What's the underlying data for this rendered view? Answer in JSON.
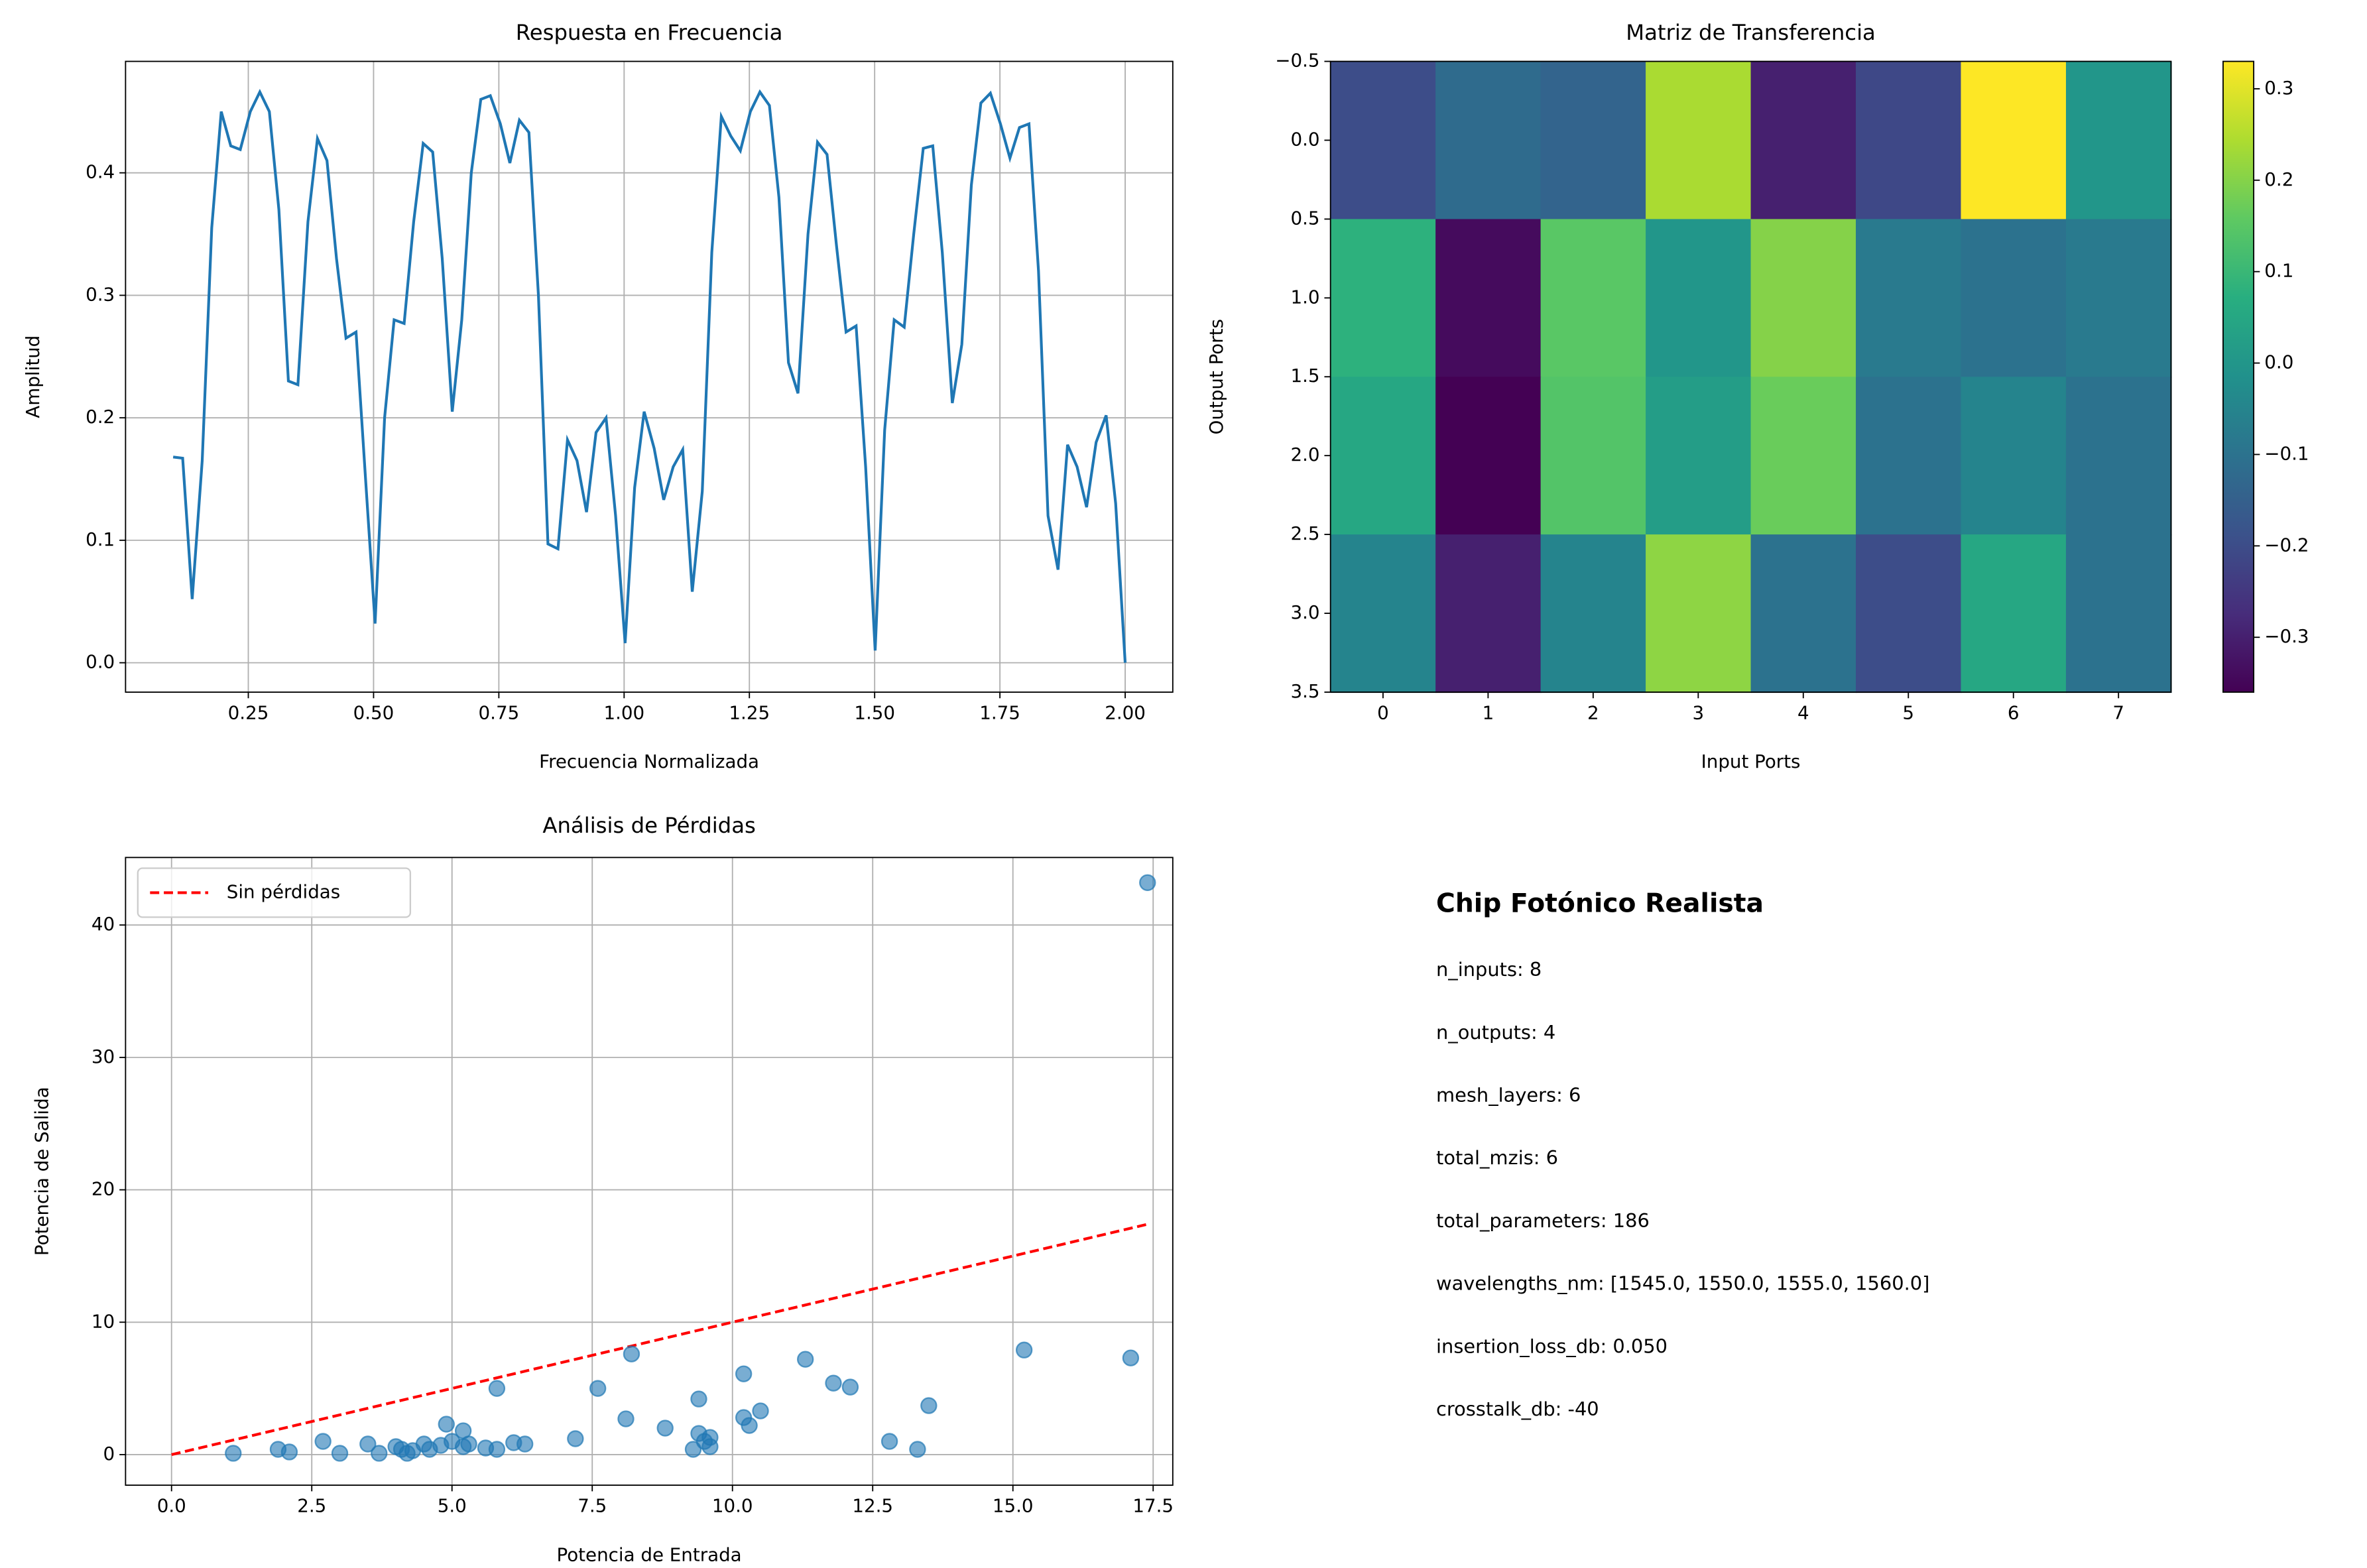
{
  "chart_data": [
    {
      "type": "line",
      "title": "Respuesta en Frecuencia",
      "xlabel": "Frecuencia Normalizada",
      "ylabel": "Amplitud",
      "color": "#1f77b4",
      "grid": true,
      "x": [
        0.1,
        0.119,
        0.138,
        0.158,
        0.177,
        0.196,
        0.215,
        0.234,
        0.254,
        0.273,
        0.292,
        0.311,
        0.33,
        0.349,
        0.369,
        0.388,
        0.407,
        0.426,
        0.445,
        0.465,
        0.484,
        0.503,
        0.522,
        0.541,
        0.561,
        0.58,
        0.599,
        0.618,
        0.637,
        0.657,
        0.676,
        0.695,
        0.714,
        0.733,
        0.753,
        0.772,
        0.791,
        0.81,
        0.829,
        0.848,
        0.868,
        0.887,
        0.906,
        0.925,
        0.944,
        0.964,
        0.983,
        1.002,
        1.021,
        1.04,
        1.06,
        1.079,
        1.098,
        1.117,
        1.136,
        1.156,
        1.175,
        1.194,
        1.213,
        1.232,
        1.252,
        1.271,
        1.29,
        1.309,
        1.328,
        1.347,
        1.367,
        1.386,
        1.405,
        1.424,
        1.443,
        1.463,
        1.482,
        1.501,
        1.52,
        1.539,
        1.559,
        1.578,
        1.597,
        1.616,
        1.635,
        1.655,
        1.674,
        1.693,
        1.712,
        1.731,
        1.751,
        1.77,
        1.789,
        1.808,
        1.827,
        1.846,
        1.866,
        1.885,
        1.904,
        1.923,
        1.942,
        1.962,
        1.981,
        2.0
      ],
      "values": [
        0.168,
        0.167,
        0.052,
        0.165,
        0.355,
        0.45,
        0.422,
        0.419,
        0.45,
        0.466,
        0.45,
        0.37,
        0.23,
        0.227,
        0.36,
        0.428,
        0.41,
        0.33,
        0.265,
        0.27,
        0.15,
        0.032,
        0.2,
        0.28,
        0.277,
        0.36,
        0.424,
        0.417,
        0.33,
        0.205,
        0.28,
        0.4,
        0.46,
        0.463,
        0.44,
        0.408,
        0.443,
        0.433,
        0.3,
        0.097,
        0.093,
        0.182,
        0.165,
        0.123,
        0.188,
        0.2,
        0.12,
        0.016,
        0.143,
        0.205,
        0.175,
        0.133,
        0.16,
        0.174,
        0.058,
        0.14,
        0.335,
        0.446,
        0.43,
        0.418,
        0.45,
        0.466,
        0.455,
        0.38,
        0.245,
        0.22,
        0.35,
        0.425,
        0.415,
        0.34,
        0.27,
        0.275,
        0.16,
        0.01,
        0.19,
        0.28,
        0.274,
        0.35,
        0.42,
        0.422,
        0.335,
        0.212,
        0.26,
        0.39,
        0.457,
        0.465,
        0.44,
        0.412,
        0.437,
        0.44,
        0.32,
        0.12,
        0.076,
        0.178,
        0.16,
        0.127,
        0.18,
        0.202,
        0.13,
        0.0
      ],
      "xlim": [
        0.005,
        2.095
      ],
      "ylim": [
        -0.024,
        0.491
      ],
      "xticks": [
        0.25,
        {
          "value": 0.5,
          "label": "0.50"
        },
        0.75,
        {
          "value": 1,
          "label": "1.00"
        },
        1.25,
        {
          "value": 1.5,
          "label": "1.50"
        },
        1.75,
        {
          "value": 2,
          "label": "2.00"
        }
      ],
      "yticks": [
        {
          "value": 0,
          "label": "0.0"
        },
        0.1,
        0.2,
        0.3,
        0.4
      ]
    },
    {
      "type": "heatmap",
      "title": "Matriz de Transferencia",
      "xlabel": "Input Ports",
      "ylabel": "Output Ports",
      "colormap": "viridis",
      "values": [
        [
          -0.2,
          -0.12,
          -0.14,
          0.24,
          -0.3,
          -0.21,
          0.33,
          0.0
        ],
        [
          0.08,
          -0.34,
          0.15,
          0.0,
          0.2,
          -0.08,
          -0.1,
          -0.08
        ],
        [
          0.05,
          -0.36,
          0.14,
          0.02,
          0.17,
          -0.1,
          -0.05,
          -0.1
        ],
        [
          -0.05,
          -0.3,
          -0.05,
          0.21,
          -0.1,
          -0.2,
          0.05,
          -0.1
        ]
      ],
      "clim": [
        -0.36,
        0.33
      ],
      "cticks": [
        {
          "value": -0.3,
          "label": "−0.3"
        },
        {
          "value": -0.2,
          "label": "−0.2"
        },
        {
          "value": -0.1,
          "label": "−0.1"
        },
        {
          "value": 0,
          "label": "0.0"
        },
        0.1,
        0.2,
        0.3
      ],
      "xlim": [
        -0.5,
        7.5
      ],
      "ylim": [
        3.5,
        -0.5
      ],
      "xticks": [
        0,
        1,
        2,
        3,
        4,
        5,
        6,
        7
      ],
      "yticks": [
        {
          "value": -0.5,
          "label": "−0.5"
        },
        {
          "value": 0,
          "label": "0.0"
        },
        0.5,
        {
          "value": 1,
          "label": "1.0"
        },
        1.5,
        {
          "value": 2,
          "label": "2.0"
        },
        2.5,
        {
          "value": 3,
          "label": "3.0"
        },
        3.5
      ]
    },
    {
      "type": "scatter",
      "title": "Análisis de Pérdidas",
      "xlabel": "Potencia de Entrada",
      "ylabel": "Potencia de Salida",
      "color": "#1f77b4",
      "grid": true,
      "legend": "upper left",
      "x": [
        1.1,
        1.9,
        2.1,
        2.7,
        3.0,
        3.5,
        3.7,
        4.0,
        4.1,
        4.2,
        4.3,
        4.5,
        4.6,
        4.8,
        4.9,
        5.0,
        5.2,
        5.2,
        5.3,
        5.6,
        5.8,
        5.8,
        6.1,
        6.3,
        7.2,
        7.6,
        8.1,
        8.2,
        8.8,
        9.3,
        9.4,
        9.4,
        9.5,
        9.6,
        9.6,
        10.2,
        10.2,
        10.3,
        10.5,
        11.3,
        11.8,
        12.1,
        12.8,
        13.3,
        13.5,
        15.2,
        17.1,
        17.4
      ],
      "values": [
        0.1,
        0.4,
        0.2,
        1.0,
        0.1,
        0.8,
        0.1,
        0.6,
        0.4,
        0.1,
        0.3,
        0.8,
        0.4,
        0.7,
        2.3,
        1.0,
        0.6,
        1.8,
        0.8,
        0.5,
        0.4,
        5.0,
        0.9,
        0.8,
        1.2,
        5.0,
        2.7,
        7.6,
        2.0,
        0.4,
        4.2,
        1.6,
        1.0,
        1.3,
        0.6,
        2.8,
        6.1,
        2.2,
        3.3,
        7.2,
        5.4,
        5.1,
        1.0,
        0.4,
        3.7,
        7.9,
        7.3,
        43.2
      ],
      "reference_line": {
        "name": "Sin pérdidas",
        "color": "red",
        "x": [
          0,
          17.4
        ],
        "values": [
          0,
          17.4
        ]
      },
      "xlim": [
        -0.82,
        17.85
      ],
      "ylim": [
        -2.31,
        45.1
      ],
      "xticks": [
        {
          "value": 0,
          "label": "0.0"
        },
        2.5,
        {
          "value": 5,
          "label": "5.0"
        },
        7.5,
        {
          "value": 10,
          "label": "10.0"
        },
        12.5,
        {
          "value": 15,
          "label": "15.0"
        },
        17.5
      ],
      "yticks": [
        0,
        10,
        20,
        30,
        40
      ]
    }
  ],
  "info": {
    "title": "Chip Fotónico Realista",
    "lines": [
      "n_inputs: 8",
      "n_outputs: 4",
      "mesh_layers: 6",
      "total_mzis: 6",
      "total_parameters: 186",
      "wavelengths_nm: [1545.0, 1550.0, 1555.0, 1560.0]",
      "insertion_loss_db: 0.050",
      "crosstalk_db: -40"
    ]
  }
}
